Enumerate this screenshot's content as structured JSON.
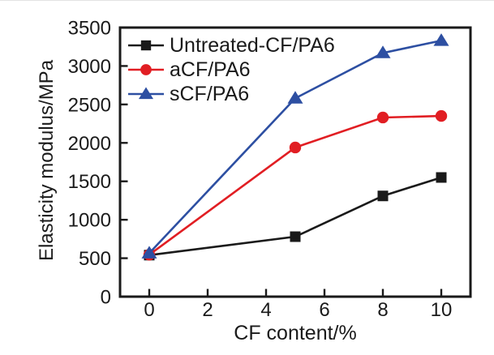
{
  "figure": {
    "background": "#ffffff",
    "axis_color": "#1a1a1a",
    "tick_label_fontsize_px": 24
  },
  "chart_data": {
    "type": "line",
    "title": "",
    "xlabel": "CF content/%",
    "ylabel": "Elasticity modulus/MPa",
    "x": [
      0,
      5,
      8,
      10
    ],
    "xticks": [
      0,
      2,
      4,
      6,
      8,
      10
    ],
    "yticks": [
      0,
      500,
      1000,
      1500,
      2000,
      2500,
      3000,
      3500
    ],
    "xlim": [
      -1,
      11
    ],
    "ylim": [
      0,
      3500
    ],
    "grid": false,
    "legend_position": "upper-left-inside",
    "series": [
      {
        "name": "Untreated-CF/PA6",
        "color": "#1a1a1a",
        "marker": "square",
        "values": [
          540,
          780,
          1310,
          1550
        ]
      },
      {
        "name": "aCF/PA6",
        "color": "#e11e23",
        "marker": "circle",
        "values": [
          545,
          1940,
          2330,
          2350
        ]
      },
      {
        "name": "sCF/PA6",
        "color": "#2d4fa2",
        "marker": "triangle",
        "values": [
          565,
          2580,
          3170,
          3330
        ]
      }
    ]
  }
}
